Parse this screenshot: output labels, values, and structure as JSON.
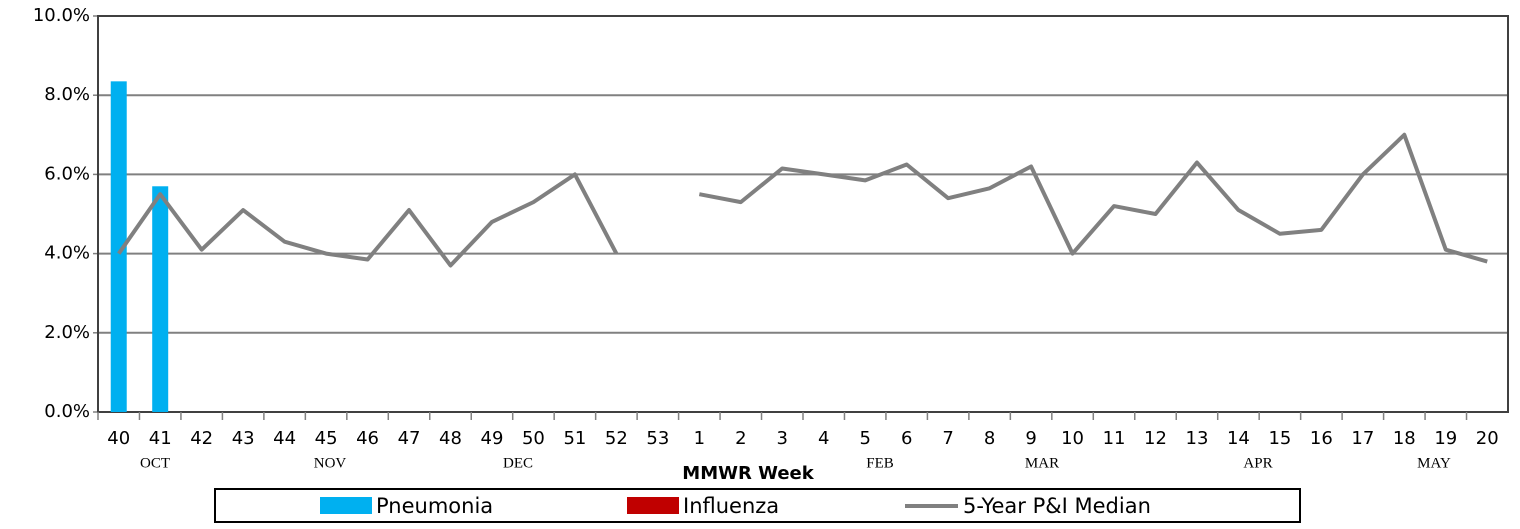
{
  "chart_data": {
    "type": "bar-line",
    "x_label": "MMWR Week",
    "categories": [
      "40",
      "41",
      "42",
      "43",
      "44",
      "45",
      "46",
      "47",
      "48",
      "49",
      "50",
      "51",
      "52",
      "53",
      "1",
      "2",
      "3",
      "4",
      "5",
      "6",
      "7",
      "8",
      "9",
      "10",
      "11",
      "12",
      "13",
      "14",
      "15",
      "16",
      "17",
      "18",
      "19",
      "20"
    ],
    "month_labels": [
      "OCT",
      "NOV",
      "DEC",
      "FEB",
      "MAR",
      "APR",
      "MAY"
    ],
    "series": [
      {
        "name": "Pneumonia",
        "type": "bar",
        "color": "#00b0f0",
        "values": [
          8.35,
          5.7,
          null,
          null,
          null,
          null,
          null,
          null,
          null,
          null,
          null,
          null,
          null,
          null,
          null,
          null,
          null,
          null,
          null,
          null,
          null,
          null,
          null,
          null,
          null,
          null,
          null,
          null,
          null,
          null,
          null,
          null,
          null,
          null
        ]
      },
      {
        "name": "Influenza",
        "type": "bar",
        "color": "#c00000",
        "values": [
          0,
          0,
          null,
          null,
          null,
          null,
          null,
          null,
          null,
          null,
          null,
          null,
          null,
          null,
          null,
          null,
          null,
          null,
          null,
          null,
          null,
          null,
          null,
          null,
          null,
          null,
          null,
          null,
          null,
          null,
          null,
          null,
          null,
          null
        ]
      },
      {
        "name": "5-Year P&I Median",
        "type": "line",
        "color": "#808080",
        "values": [
          4.0,
          5.5,
          4.1,
          5.1,
          4.3,
          4.0,
          3.85,
          5.1,
          3.7,
          4.8,
          5.3,
          6.0,
          4.0,
          null,
          5.5,
          5.3,
          6.15,
          6.0,
          5.85,
          6.25,
          5.4,
          5.65,
          6.2,
          4.0,
          5.2,
          5.0,
          6.3,
          5.1,
          4.5,
          4.6,
          6.0,
          7.0,
          4.1,
          3.8
        ]
      }
    ],
    "ylim": [
      0,
      10
    ],
    "yticks": [
      {
        "value": 0,
        "label": "0.0%"
      },
      {
        "value": 2,
        "label": "2.0%"
      },
      {
        "value": 4,
        "label": "4.0%"
      },
      {
        "value": 6,
        "label": "6.0%"
      },
      {
        "value": 8,
        "label": "8.0%"
      },
      {
        "value": 10,
        "label": "10.0%"
      }
    ],
    "grid": true
  }
}
